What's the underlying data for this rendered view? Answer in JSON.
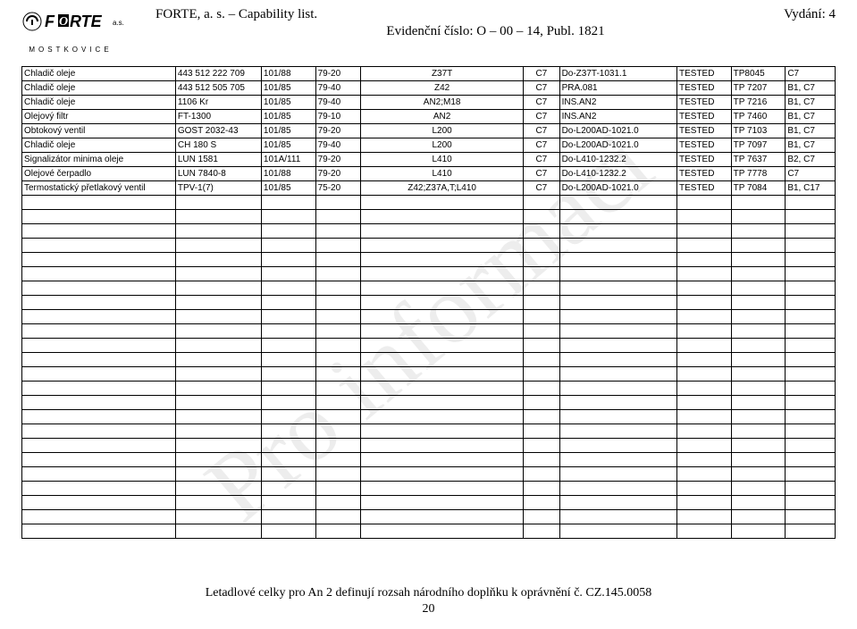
{
  "watermark": "Pro informaci",
  "logo": {
    "brand": "ORTE",
    "suffix": "a.s.",
    "town": "MOSTKOVICE"
  },
  "header": {
    "left": "FORTE, a. s. – Capability list.",
    "right": "Vydání: 4",
    "line2": "Evidenční číslo:  O – 00 – 14,    Publ. 1821"
  },
  "table": {
    "columns": [
      "c0",
      "c1",
      "c2",
      "c3",
      "c4",
      "c5",
      "c6",
      "c7",
      "c8",
      "c9"
    ],
    "rows": [
      [
        "Chladič oleje",
        "443 512 222 709",
        "101/88",
        "79-20",
        "Z37T",
        "C7",
        "Do-Z37T-1031.1",
        "TESTED",
        "TP8045",
        "C7"
      ],
      [
        "Chladič oleje",
        "443 512 505 705",
        "101/85",
        "79-40",
        "Z42",
        "C7",
        "PRA.081",
        "TESTED",
        "TP 7207",
        "B1, C7"
      ],
      [
        "Chladič oleje",
        "1106 Kr",
        "101/85",
        "79-40",
        "AN2;M18",
        "C7",
        "INS.AN2",
        "TESTED",
        "TP 7216",
        "B1, C7"
      ],
      [
        "Olejový filtr",
        "FT-1300",
        "101/85",
        "79-10",
        "AN2",
        "C7",
        "INS.AN2",
        "TESTED",
        "TP 7460",
        "B1, C7"
      ],
      [
        "Obtokový ventil",
        "GOST 2032-43",
        "101/85",
        "79-20",
        "L200",
        "C7",
        "Do-L200AD-1021.0",
        "TESTED",
        "TP 7103",
        "B1, C7"
      ],
      [
        "Chladič oleje",
        "CH 180 S",
        "101/85",
        "79-40",
        "L200",
        "C7",
        "Do-L200AD-1021.0",
        "TESTED",
        "TP 7097",
        "B1, C7"
      ],
      [
        "Signalizátor minima oleje",
        "LUN 1581",
        "101A/111",
        "79-20",
        "L410",
        "C7",
        "Do-L410-1232.2",
        "TESTED",
        "TP 7637",
        "B2, C7"
      ],
      [
        "Olejové čerpadlo",
        "LUN 7840-8",
        "101/88",
        "79-20",
        "L410",
        "C7",
        "Do-L410-1232.2",
        "TESTED",
        "TP 7778",
        "C7"
      ],
      [
        "Termostatický přetlakový ventil",
        "TPV-1(7)",
        "101/85",
        "75-20",
        "Z42;Z37A,T;L410",
        "C7",
        "Do-L200AD-1021.0",
        "TESTED",
        "TP 7084",
        "B1, C17"
      ]
    ],
    "empty_rows": 24
  },
  "footer": {
    "text": "Letadlové celky pro An 2 definují rozsah národního doplňku k oprávnění č. CZ.145.0058",
    "page": "20"
  }
}
